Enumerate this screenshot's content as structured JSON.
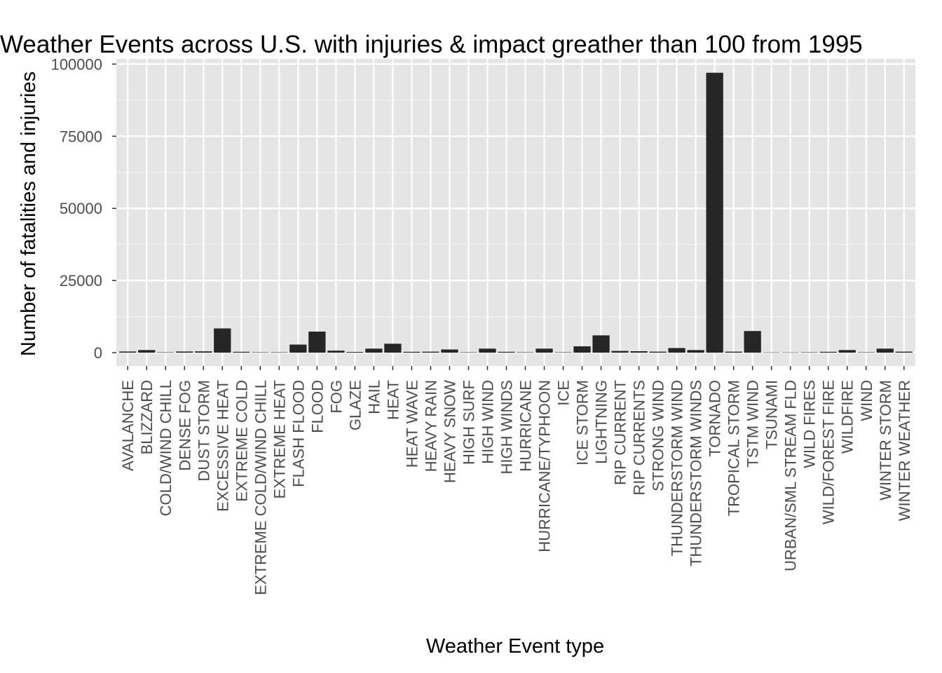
{
  "chart_data": {
    "type": "bar",
    "title": "Weather Events across U.S. with injuries & impact greather than 100 from 1995",
    "xlabel": "Weather Event type",
    "ylabel": "Number of fatalities and injuries",
    "ylim": [
      -4600,
      101800
    ],
    "yticks": [
      0,
      25000,
      50000,
      75000,
      100000
    ],
    "grid": true,
    "legend": "none",
    "colors": {
      "bar": "#262626",
      "panel": "#e5e5e5",
      "grid_major": "#ffffff",
      "grid_minor": "#f2f2f2",
      "tick_text": "#4d4d4d"
    },
    "categories": [
      "AVALANCHE",
      "BLIZZARD",
      "COLD/WIND CHILL",
      "DENSE FOG",
      "DUST STORM",
      "EXCESSIVE HEAT",
      "EXTREME COLD",
      "EXTREME COLD/WIND CHILL",
      "EXTREME HEAT",
      "FLASH FLOOD",
      "FLOOD",
      "FOG",
      "GLAZE",
      "HAIL",
      "HEAT",
      "HEAT WAVE",
      "HEAVY RAIN",
      "HEAVY SNOW",
      "HIGH SURF",
      "HIGH WIND",
      "HIGH WINDS",
      "HURRICANE",
      "HURRICANE/TYPHOON",
      "ICE",
      "ICE STORM",
      "LIGHTNING",
      "RIP CURRENT",
      "RIP CURRENTS",
      "STRONG WIND",
      "THUNDERSTORM WIND",
      "THUNDERSTORM WINDS",
      "TORNADO",
      "TROPICAL STORM",
      "TSTM WIND",
      "TSUNAMI",
      "URBAN/SML STREAM FLD",
      "WILD FIRES",
      "WILD/FOREST FIRE",
      "WILDFIRE",
      "WIND",
      "WINTER STORM",
      "WINTER WEATHER"
    ],
    "values": [
      400,
      900,
      150,
      400,
      450,
      8400,
      300,
      150,
      150,
      2800,
      7300,
      700,
      250,
      1400,
      3100,
      300,
      350,
      1100,
      150,
      1400,
      300,
      150,
      1400,
      150,
      2200,
      6000,
      600,
      500,
      350,
      1600,
      900,
      97000,
      350,
      7500,
      100,
      100,
      150,
      300,
      900,
      150,
      1400,
      350
    ]
  }
}
